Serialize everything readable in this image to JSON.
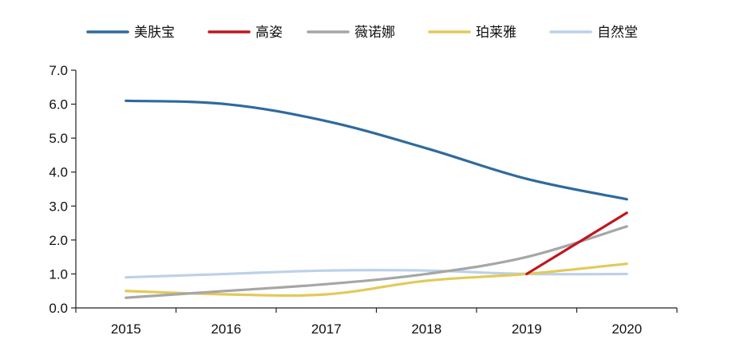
{
  "chart_data": {
    "type": "line",
    "title": "",
    "xlabel": "",
    "ylabel": "",
    "categories": [
      "2015",
      "2016",
      "2017",
      "2018",
      "2019",
      "2020"
    ],
    "ylim": [
      0,
      7
    ],
    "y_ticks": [
      "0.0",
      "1.0",
      "2.0",
      "3.0",
      "4.0",
      "5.0",
      "6.0",
      "7.0"
    ],
    "grid": false,
    "legend_position": "top",
    "series": [
      {
        "name": "美肤宝",
        "color": "#2e6a9e",
        "values": [
          6.1,
          6.0,
          5.5,
          4.7,
          3.8,
          3.2
        ]
      },
      {
        "name": "高姿",
        "color": "#c0161d",
        "values": [
          null,
          null,
          null,
          null,
          1.0,
          2.8
        ]
      },
      {
        "name": "薇诺娜",
        "color": "#a6a6a6",
        "values": [
          0.3,
          0.5,
          0.7,
          1.0,
          1.5,
          2.4
        ]
      },
      {
        "name": "珀莱雅",
        "color": "#e3c958",
        "values": [
          0.5,
          0.4,
          0.4,
          0.8,
          1.0,
          1.3
        ]
      },
      {
        "name": "自然堂",
        "color": "#bcd1e8",
        "values": [
          0.9,
          1.0,
          1.1,
          1.1,
          1.0,
          1.0
        ]
      }
    ]
  }
}
